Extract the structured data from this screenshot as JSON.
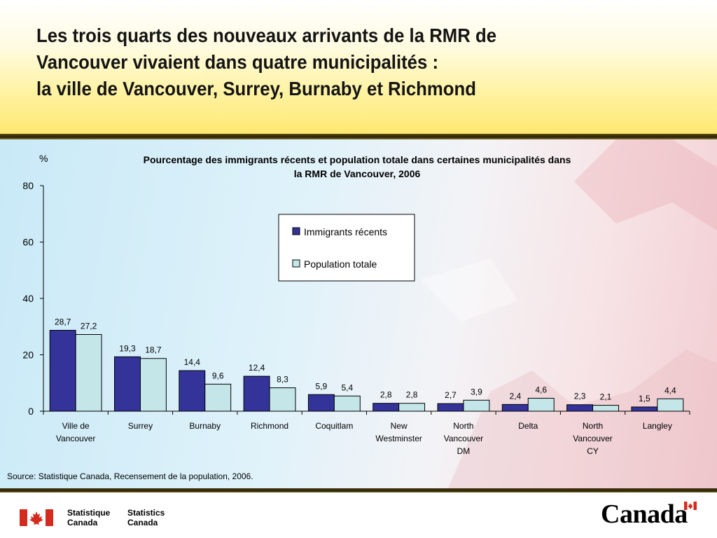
{
  "slide": {
    "title_lines": [
      "Les trois quarts des nouveaux arrivants de la RMR de",
      "Vancouver vivaient dans quatre municipalités :",
      "la ville de  Vancouver, Surrey, Burnaby et Richmond"
    ],
    "source": "Source: Statistique Canada, Recensement de la population, 2006."
  },
  "footer": {
    "agency_fr_line1": "Statistique",
    "agency_fr_line2": "Canada",
    "agency_en_line1": "Statistics",
    "agency_en_line2": "Canada",
    "wordmark": "Canada"
  },
  "colors": {
    "series1": "#333399",
    "series2": "#c4e6e8",
    "bar_stroke": "#000000",
    "flag_red": "#d52b1e"
  },
  "chart_data": {
    "type": "bar",
    "title_line1": "Pourcentage des immigrants récents et population totale dans certaines municipalités dans",
    "title_line2": "la RMR de Vancouver, 2006",
    "ylabel": "%",
    "ylim": [
      0,
      80
    ],
    "yticks": [
      0,
      20,
      40,
      60,
      80
    ],
    "legend_position": "top-center",
    "categories": [
      [
        "Ville de",
        "Vancouver"
      ],
      [
        "Surrey"
      ],
      [
        "Burnaby"
      ],
      [
        "Richmond"
      ],
      [
        "Coquitlam"
      ],
      [
        "New",
        "Westminster"
      ],
      [
        "North",
        "Vancouver",
        "DM"
      ],
      [
        "Delta"
      ],
      [
        "North",
        "Vancouver",
        "CY"
      ],
      [
        "Langley"
      ]
    ],
    "series": [
      {
        "name": "Immigrants récents",
        "values": [
          28.7,
          19.3,
          14.4,
          12.4,
          5.9,
          2.8,
          2.7,
          2.4,
          2.3,
          1.5
        ],
        "labels": [
          "28,7",
          "19,3",
          "14,4",
          "12,4",
          "5,9",
          "2,8",
          "2,7",
          "2,4",
          "2,3",
          "1,5"
        ]
      },
      {
        "name": "Population totale",
        "values": [
          27.2,
          18.7,
          9.6,
          8.3,
          5.4,
          2.8,
          3.9,
          4.6,
          2.1,
          4.4
        ],
        "labels": [
          "27,2",
          "18,7",
          "9,6",
          "8,3",
          "5,4",
          "2,8",
          "3,9",
          "4,6",
          "2,1",
          "4,4"
        ]
      }
    ]
  }
}
